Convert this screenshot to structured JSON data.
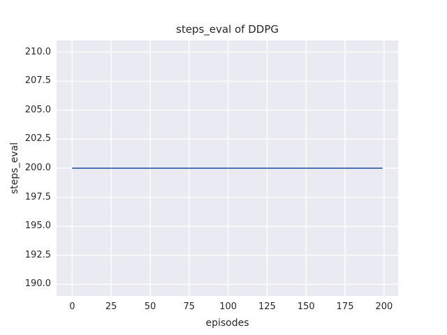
{
  "chart_data": {
    "type": "line",
    "title": "steps_eval of DDPG",
    "xlabel": "episodes",
    "ylabel": "steps_eval",
    "x_ticks": [
      0,
      25,
      50,
      75,
      100,
      125,
      150,
      175,
      200
    ],
    "x_tick_labels": [
      "0",
      "25",
      "50",
      "75",
      "100",
      "125",
      "150",
      "175",
      "200"
    ],
    "y_ticks": [
      190.0,
      192.5,
      195.0,
      197.5,
      200.0,
      202.5,
      205.0,
      207.5,
      210.0
    ],
    "y_tick_labels": [
      "190.0",
      "192.5",
      "195.0",
      "197.5",
      "200.0",
      "202.5",
      "205.0",
      "207.5",
      "210.0"
    ],
    "xlim": [
      -10,
      209
    ],
    "ylim": [
      189,
      211
    ],
    "grid": true,
    "legend": "none",
    "series": [
      {
        "name": "steps_eval",
        "description": "constant line at y=200 for every episode from 0 to 199",
        "points": [
          [
            0,
            200.0
          ],
          [
            199,
            200.0
          ]
        ],
        "y_constant": 200.0,
        "x_start": 0,
        "x_end": 199
      }
    ],
    "colors": {
      "figure_background": "#FFFFFF",
      "axes_background": "#EAEAF2",
      "grid_color": "#FFFFFF",
      "line_color": "#4C72B0",
      "text_color": "#262626"
    }
  }
}
